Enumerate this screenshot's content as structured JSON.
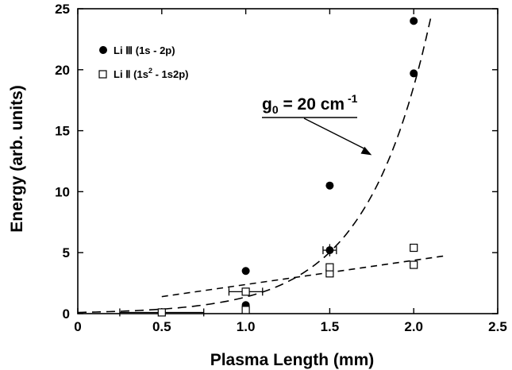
{
  "chart_data": {
    "type": "scatter",
    "xlabel": "Plasma Length (mm)",
    "ylabel": "Energy  (arb. units)",
    "xlim": [
      0,
      2.5
    ],
    "ylim": [
      0,
      25
    ],
    "xticks": [
      "0",
      "0.5",
      "1.0",
      "1.5",
      "2.0",
      "2.5"
    ],
    "yticks": [
      "0",
      "5",
      "10",
      "15",
      "20",
      "25"
    ],
    "legend_position": "top-left",
    "grid": false,
    "series": [
      {
        "name": "Li III (1s - 2p)",
        "legend_text": "Li Ⅲ  (1s - 2p)",
        "marker": "filled-circle",
        "color": "#000000",
        "points": [
          {
            "x": 0.5,
            "y": 0.1,
            "xerr": 0.25
          },
          {
            "x": 1.0,
            "y": 0.5
          },
          {
            "x": 1.0,
            "y": 0.7
          },
          {
            "x": 1.0,
            "y": 3.5
          },
          {
            "x": 1.5,
            "y": 10.5
          },
          {
            "x": 1.5,
            "y": 5.2,
            "xerr": 0.04,
            "yerr": 0.5
          },
          {
            "x": 2.0,
            "y": 19.7
          },
          {
            "x": 2.0,
            "y": 24.0
          }
        ]
      },
      {
        "name": "Li II (1s2 - 1s2p)",
        "legend_text": "Li Ⅱ  (1s",
        "legend_sup": "2",
        "legend_tail": " - 1s2p)",
        "marker": "open-square",
        "color": "#000000",
        "points": [
          {
            "x": 0.5,
            "y": 0.1
          },
          {
            "x": 1.0,
            "y": 0.3
          },
          {
            "x": 1.0,
            "y": 1.8,
            "xerr": 0.1
          },
          {
            "x": 1.5,
            "y": 3.3
          },
          {
            "x": 1.5,
            "y": 3.8
          },
          {
            "x": 2.0,
            "y": 4.0
          },
          {
            "x": 2.0,
            "y": 5.4
          }
        ]
      }
    ],
    "fits": [
      {
        "name": "exponential",
        "style": "dashed",
        "x_range": [
          0,
          2.1
        ],
        "a": 0.0997,
        "b": 2.615
      },
      {
        "name": "linear",
        "style": "dashed",
        "x_range": [
          0.5,
          2.18
        ],
        "slope": 1.985,
        "intercept": 0.4
      }
    ],
    "annotation": {
      "text": "g",
      "sub": "0",
      "tail": " = 20 cm",
      "sup": " -1",
      "arrow_target": {
        "x": 1.75,
        "y": 13.0
      }
    }
  }
}
